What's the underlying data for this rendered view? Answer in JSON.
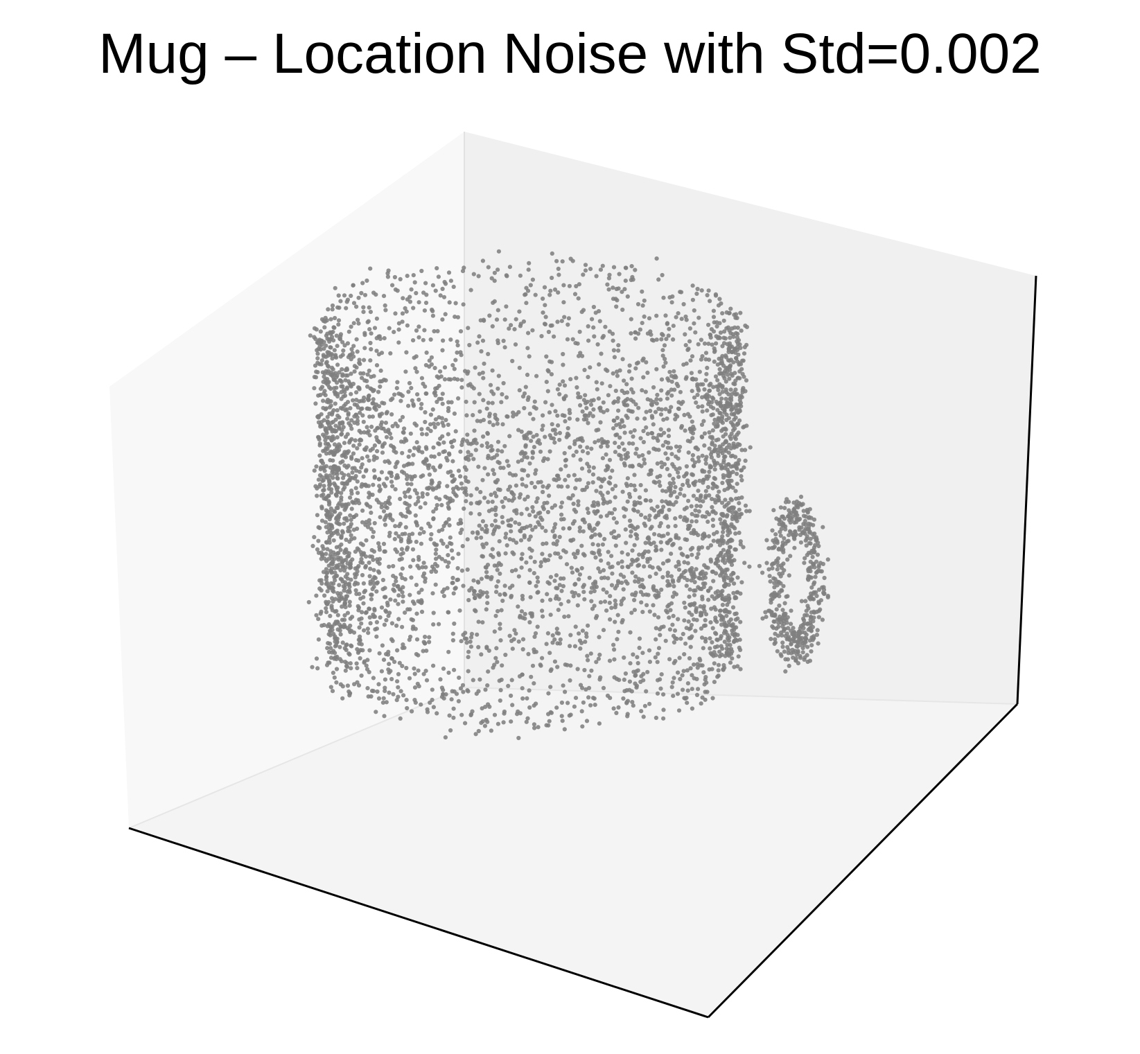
{
  "chart_data": {
    "type": "scatter",
    "projection": "3d",
    "title": "Mug – Location Noise with Std=0.002",
    "xlabel": "",
    "ylabel": "",
    "zlabel": "",
    "ticks_visible": false,
    "grid": false,
    "legend": "none",
    "point_color": "#808080",
    "pane_colors": {
      "left_pane": "#f8f8f8",
      "back_pane": "#f0f0f0",
      "floor_pane": "#f4f4f4",
      "axis_line": "#000000"
    },
    "series": [
      {
        "point_cloud": "mug",
        "noise_std": 0.002,
        "approx_point_count": 5000,
        "components": [
          {
            "part": "body",
            "shape": "open cylinder"
          },
          {
            "part": "handle",
            "shape": "loop"
          }
        ]
      }
    ]
  }
}
